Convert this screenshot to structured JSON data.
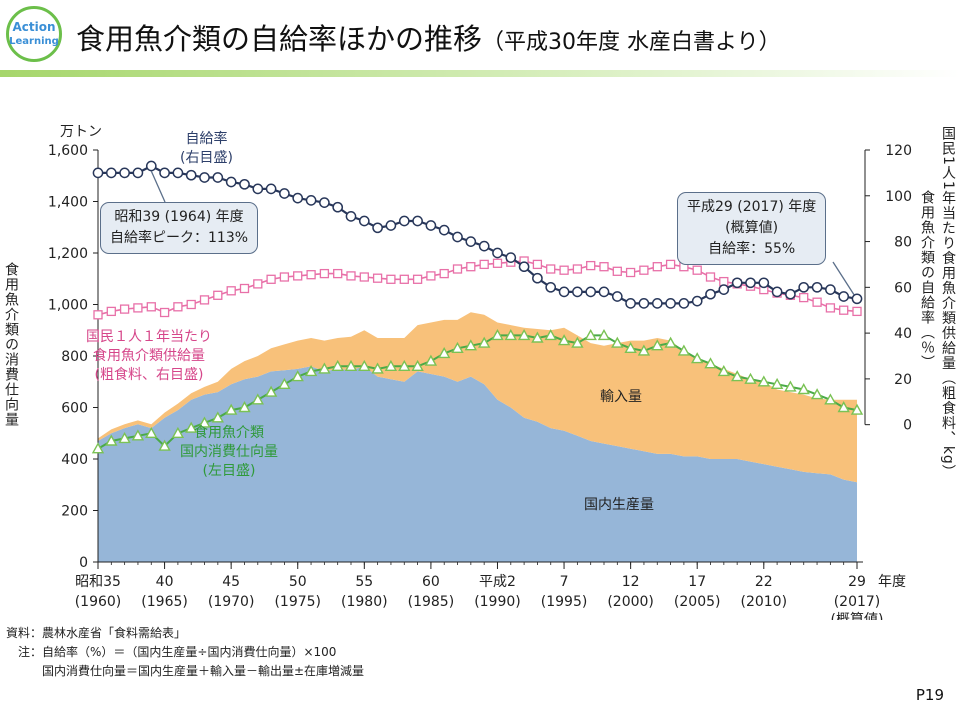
{
  "header": {
    "logo_line1": "Action",
    "logo_line2": "Learning",
    "title": "食用魚介類の自給率ほかの推移",
    "title_sub": "（平成30年度 水産白書より）"
  },
  "colors": {
    "domestic_fill": "#96b6d8",
    "import_fill": "#f8c17a",
    "self_sufficiency_line": "#28375a",
    "per_capita_line": "#e870a8",
    "consumption_line": "#4aaa48",
    "consumption_marker": "#7ac254"
  },
  "chart_data": {
    "type": "area",
    "title": "食用魚介類の自給率ほかの推移",
    "x_years": [
      1960,
      1961,
      1962,
      1963,
      1964,
      1965,
      1966,
      1967,
      1968,
      1969,
      1970,
      1971,
      1972,
      1973,
      1974,
      1975,
      1976,
      1977,
      1978,
      1979,
      1980,
      1981,
      1982,
      1983,
      1984,
      1985,
      1986,
      1987,
      1988,
      1989,
      1990,
      1991,
      1992,
      1993,
      1994,
      1995,
      1996,
      1997,
      1998,
      1999,
      2000,
      2001,
      2002,
      2003,
      2004,
      2005,
      2006,
      2007,
      2008,
      2009,
      2010,
      2011,
      2012,
      2013,
      2014,
      2015,
      2016,
      2017
    ],
    "xaxis": {
      "label": "年度",
      "ticks": [
        {
          "year": 1960,
          "top": "昭和35",
          "bottom": "(1960)"
        },
        {
          "year": 1965,
          "top": "40",
          "bottom": "(1965)"
        },
        {
          "year": 1970,
          "top": "45",
          "bottom": "(1970)"
        },
        {
          "year": 1975,
          "top": "50",
          "bottom": "(1975)"
        },
        {
          "year": 1980,
          "top": "55",
          "bottom": "(1980)"
        },
        {
          "year": 1985,
          "top": "60",
          "bottom": "(1985)"
        },
        {
          "year": 1990,
          "top": "平成2",
          "bottom": "(1990)"
        },
        {
          "year": 1995,
          "top": "7",
          "bottom": "(1995)"
        },
        {
          "year": 2000,
          "top": "12",
          "bottom": "(2000)"
        },
        {
          "year": 2005,
          "top": "17",
          "bottom": "(2005)"
        },
        {
          "year": 2010,
          "top": "22",
          "bottom": "(2010)"
        },
        {
          "year": 2017,
          "top": "29",
          "bottom": "(2017)",
          "extra": "(概算値)"
        }
      ]
    },
    "yaxis_left": {
      "unit": "万トン",
      "label": "食用魚介類の消費仕向量",
      "range": [
        0,
        1600
      ],
      "ticks": [
        0,
        200,
        400,
        600,
        800,
        1000,
        1200,
        1400,
        1600
      ],
      "tick_labels": [
        "0",
        "200",
        "400",
        "600",
        "800",
        "1,000",
        "1,200",
        "1,400",
        "1,600"
      ]
    },
    "yaxis_right": {
      "label": "国民1人1年当たり食用魚介類供給量（粗食料、kg）",
      "label2": "食用魚介類の自給率（％）",
      "range": [
        -60,
        120
      ],
      "ticks": [
        0,
        20,
        40,
        60,
        80,
        100,
        120
      ],
      "tick_labels": [
        "0",
        "20",
        "40",
        "60",
        "80",
        "100",
        "120"
      ]
    },
    "series": [
      {
        "name": "国内生産量",
        "kind": "area",
        "axis": "left",
        "values": [
          470,
          500,
          520,
          535,
          520,
          560,
          590,
          630,
          650,
          660,
          690,
          710,
          720,
          740,
          745,
          750,
          760,
          740,
          750,
          745,
          760,
          720,
          710,
          700,
          740,
          730,
          720,
          700,
          720,
          690,
          630,
          600,
          560,
          545,
          520,
          510,
          490,
          470,
          460,
          450,
          440,
          430,
          420,
          420,
          410,
          410,
          400,
          400,
          400,
          390,
          380,
          370,
          360,
          350,
          345,
          340,
          320,
          310
        ]
      },
      {
        "name": "輸入量",
        "kind": "area",
        "axis": "left",
        "stacked_on": "国内生産量",
        "values": [
          10,
          15,
          15,
          15,
          15,
          20,
          25,
          25,
          30,
          40,
          60,
          70,
          80,
          90,
          100,
          110,
          110,
          120,
          120,
          130,
          140,
          150,
          160,
          170,
          180,
          200,
          220,
          240,
          250,
          270,
          300,
          320,
          350,
          360,
          380,
          400,
          390,
          380,
          380,
          400,
          420,
          430,
          450,
          440,
          410,
          380,
          370,
          350,
          330,
          320,
          320,
          300,
          300,
          300,
          290,
          290,
          310,
          320
        ]
      },
      {
        "name": "食用魚介類国内消費仕向量",
        "kind": "line",
        "axis": "left",
        "values": [
          440,
          470,
          480,
          490,
          500,
          450,
          500,
          520,
          540,
          560,
          590,
          600,
          630,
          660,
          690,
          720,
          740,
          750,
          760,
          760,
          760,
          750,
          760,
          760,
          760,
          780,
          810,
          830,
          840,
          850,
          880,
          880,
          880,
          870,
          880,
          860,
          850,
          880,
          880,
          850,
          830,
          820,
          840,
          850,
          820,
          790,
          770,
          740,
          720,
          710,
          700,
          690,
          680,
          670,
          650,
          630,
          600,
          590
        ]
      },
      {
        "name": "国民1人1年当たり食用魚介類供給量",
        "kind": "line",
        "axis": "right",
        "unit": "kg",
        "values": [
          48.0,
          49.5,
          50.5,
          51.0,
          51.5,
          49.0,
          51.5,
          52.5,
          54.5,
          56.5,
          58.5,
          59.5,
          61.5,
          63.5,
          64.5,
          65.0,
          65.5,
          66.0,
          66.0,
          65.0,
          64.5,
          64.0,
          63.5,
          63.5,
          63.5,
          65.0,
          66.0,
          68.0,
          69.0,
          70.0,
          70.5,
          71.0,
          71.5,
          70.0,
          68.0,
          67.5,
          68.0,
          69.5,
          69.0,
          67.0,
          66.5,
          67.5,
          69.0,
          70.0,
          69.0,
          67.5,
          64.5,
          62.5,
          61.5,
          60.5,
          59.0,
          57.5,
          56.5,
          55.5,
          53.5,
          51.0,
          50.0,
          49.5
        ]
      },
      {
        "name": "自給率",
        "kind": "line",
        "axis": "right",
        "unit": "%",
        "values": [
          110,
          110,
          110,
          110,
          113,
          110,
          110,
          109,
          108,
          108,
          106,
          105,
          103,
          103,
          101,
          99,
          98,
          97,
          95,
          91,
          89,
          86,
          87,
          89,
          89,
          87,
          85,
          82,
          80,
          78,
          75,
          73,
          69,
          64,
          60,
          58,
          58,
          58,
          58,
          56,
          53,
          53,
          53,
          53,
          53,
          54,
          57,
          59,
          62,
          62,
          62,
          58,
          57,
          60,
          60,
          59,
          56,
          55
        ]
      }
    ],
    "annotations": {
      "self_sufficiency": "自給率\n(右目盛)",
      "peak": "昭和39 (1964) 年度\n自給率ピーク：113%",
      "latest": "平成29 (2017) 年度\n(概算値)\n自給率：55%",
      "per_capita": "国民１人１年当たり\n食用魚介類供給量\n(粗食料、右目盛)",
      "consumption": "食用魚介類\n国内消費仕向量\n(左目盛)",
      "imports": "輸入量",
      "domestic": "国内生産量"
    }
  },
  "notes": {
    "source": "資料：農林水産省「食料需給表」",
    "note1": "　注：自給率（%）＝（国内生産量÷国内消費仕向量）×100",
    "note2": "　　　国内消費仕向量＝国内生産量＋輸入量－輸出量±在庫増減量"
  },
  "page_number": "P19"
}
